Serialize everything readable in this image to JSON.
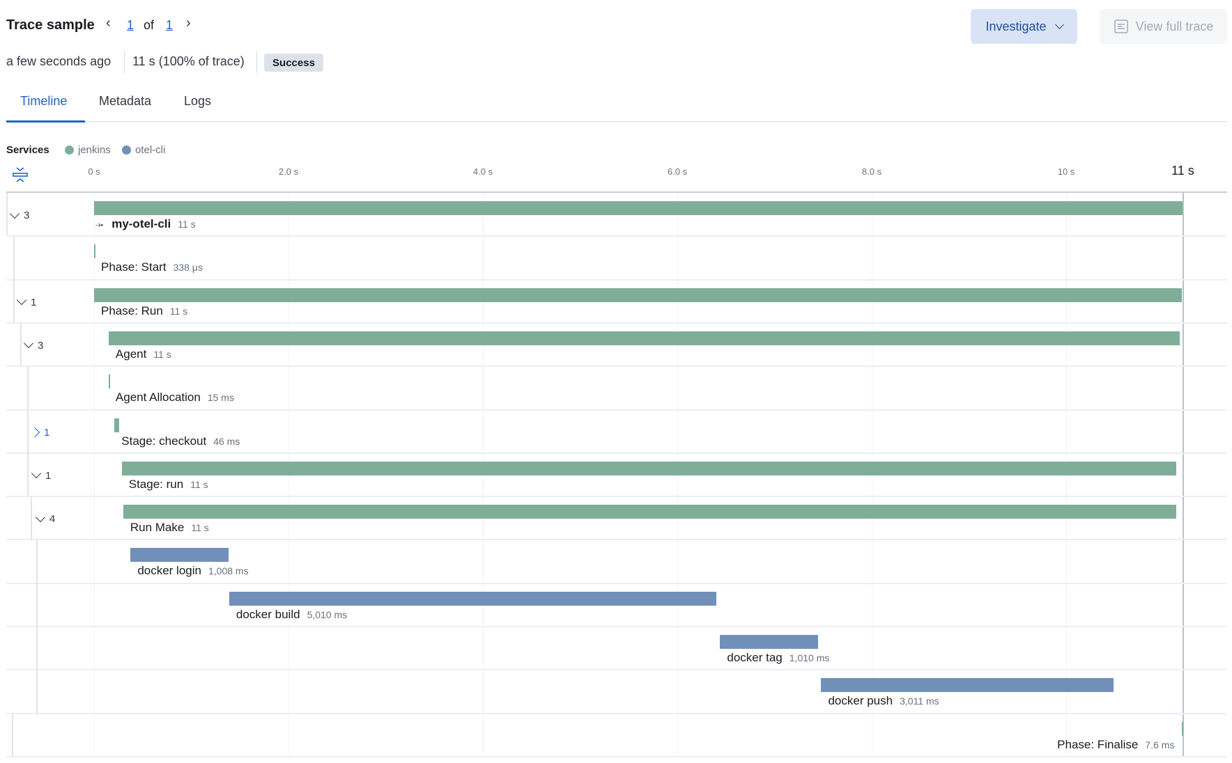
{
  "header": {
    "title": "Trace sample",
    "page_current": "1",
    "page_of": "of",
    "page_total": "1",
    "investigate_label": "Investigate",
    "view_full_trace_label": "View full trace",
    "timestamp": "a few seconds ago",
    "duration": "11 s (100% of trace)",
    "status": "Success"
  },
  "tabs": [
    {
      "label": "Timeline",
      "active": true
    },
    {
      "label": "Metadata",
      "active": false
    },
    {
      "label": "Logs",
      "active": false
    }
  ],
  "services": {
    "label": "Services",
    "items": [
      {
        "name": "jenkins",
        "color": "#7fae98"
      },
      {
        "name": "otel-cli",
        "color": "#7190b9"
      }
    ]
  },
  "chart_data": {
    "type": "timeline",
    "x_unit": "s",
    "xlim": [
      0,
      11.2
    ],
    "ticks": [
      {
        "value": 0,
        "label": "0 s"
      },
      {
        "value": 2,
        "label": "2.0 s"
      },
      {
        "value": 4,
        "label": "4.0 s"
      },
      {
        "value": 6,
        "label": "6.0 s"
      },
      {
        "value": 8,
        "label": "8.0 s"
      },
      {
        "value": 10,
        "label": "10 s"
      }
    ],
    "end_label": "11 s",
    "end_value": 11.2,
    "spans": [
      {
        "name": "my-otel-cli",
        "duration": "11 s",
        "service": "jenkins",
        "start_s": 0,
        "duration_s": 11.2,
        "depth": 0,
        "children": "3",
        "expanded": true,
        "root": true
      },
      {
        "name": "Phase: Start",
        "duration": "338 μs",
        "service": "jenkins",
        "start_s": 0,
        "duration_s": 0.000338,
        "depth": 1
      },
      {
        "name": "Phase: Run",
        "duration": "11 s",
        "service": "jenkins",
        "start_s": 0,
        "duration_s": 11.19,
        "depth": 1,
        "children": "1",
        "expanded": true
      },
      {
        "name": "Agent",
        "duration": "11 s",
        "service": "jenkins",
        "start_s": 0.15,
        "duration_s": 11.02,
        "depth": 2,
        "children": "3",
        "expanded": true
      },
      {
        "name": "Agent Allocation",
        "duration": "15 ms",
        "service": "jenkins",
        "start_s": 0.15,
        "duration_s": 0.015,
        "depth": 3
      },
      {
        "name": "Stage: checkout",
        "duration": "46 ms",
        "service": "jenkins",
        "start_s": 0.21,
        "duration_s": 0.046,
        "depth": 3,
        "children": "1",
        "expanded": false
      },
      {
        "name": "Stage: run",
        "duration": "11 s",
        "service": "jenkins",
        "start_s": 0.285,
        "duration_s": 10.85,
        "depth": 3,
        "children": "1",
        "expanded": true
      },
      {
        "name": "Run Make",
        "duration": "11 s",
        "service": "jenkins",
        "start_s": 0.3,
        "duration_s": 10.83,
        "depth": 4,
        "children": "4",
        "expanded": true
      },
      {
        "name": "docker login",
        "duration": "1,008 ms",
        "service": "otel-cli",
        "start_s": 0.375,
        "duration_s": 1.008,
        "depth": 5
      },
      {
        "name": "docker build",
        "duration": "5,010 ms",
        "service": "otel-cli",
        "start_s": 1.39,
        "duration_s": 5.01,
        "depth": 5
      },
      {
        "name": "docker tag",
        "duration": "1,010 ms",
        "service": "otel-cli",
        "start_s": 6.44,
        "duration_s": 1.01,
        "depth": 5
      },
      {
        "name": "docker push",
        "duration": "3,011 ms",
        "service": "otel-cli",
        "start_s": 7.48,
        "duration_s": 3.011,
        "depth": 5
      },
      {
        "name": "Phase: Finalise",
        "duration": "7.6 ms",
        "service": "jenkins",
        "start_s": 11.19,
        "duration_s": 0.0076,
        "depth": 1,
        "label_align": "right"
      }
    ]
  }
}
